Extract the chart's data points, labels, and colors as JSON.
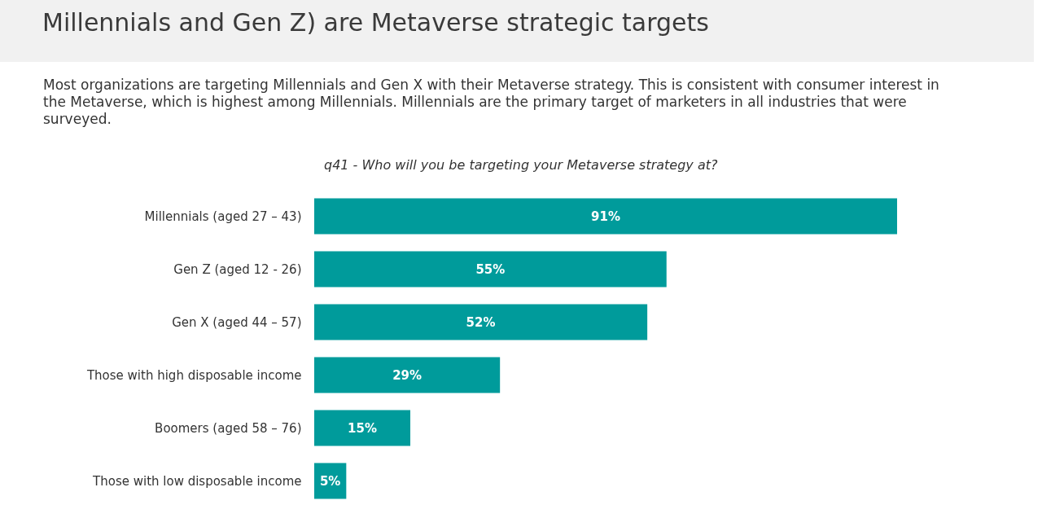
{
  "chart_data": {
    "type": "bar",
    "orientation": "horizontal",
    "title": "Millennials and Gen Z) are Metaverse strategic targets",
    "subtitle": "Most organizations are targeting Millennials and Gen X with their Metaverse strategy. This is consistent with consumer interest in the Metaverse, which is highest among Millennials. Millennials are the primary target of marketers in all industries that were surveyed.",
    "annotations": [
      "q41 - Who will you be targeting your Metaverse strategy at?"
    ],
    "categories": [
      "Millennials (aged 27 – 43)",
      "Gen Z (aged 12 - 26)",
      "Gen X (aged 44 – 57)",
      "Those with high disposable income",
      "Boomers (aged 58 – 76)",
      "Those with low disposable income"
    ],
    "values": [
      91,
      55,
      52,
      29,
      15,
      5
    ],
    "color": "#009b9b",
    "value_labels": [
      "91%",
      "55%",
      "52%",
      "29%",
      "15%",
      "5%"
    ]
  }
}
